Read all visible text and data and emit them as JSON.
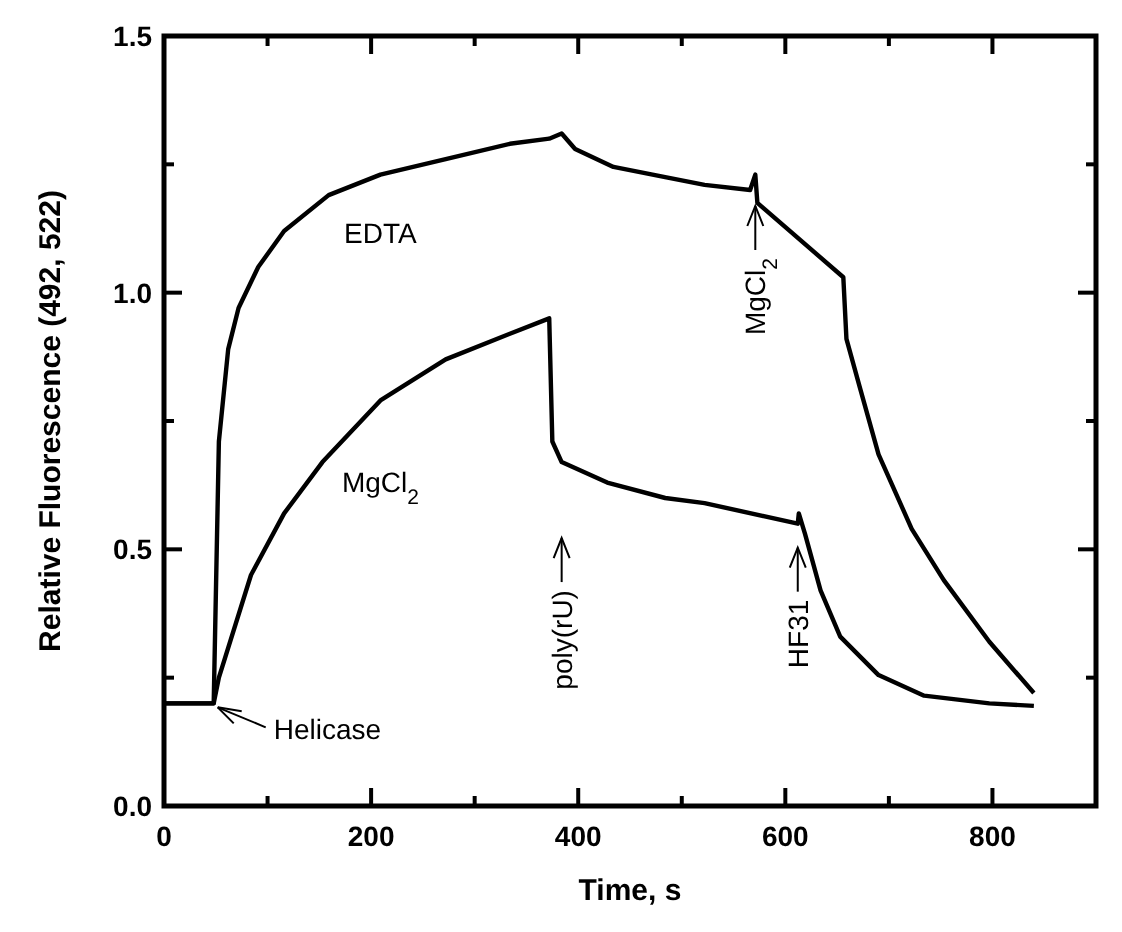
{
  "chart_data": {
    "type": "line",
    "xlabel": "Time, s",
    "ylabel": "Relative Fluorescence (492, 522)",
    "xlim": [
      0,
      900
    ],
    "ylim": [
      0,
      1.5
    ],
    "xticks": [
      0,
      {
        "value": 100,
        "label": null
      },
      200,
      {
        "value": 300,
        "label": null
      },
      400,
      {
        "value": 500,
        "label": null
      },
      600,
      {
        "value": 700,
        "label": null
      },
      800
    ],
    "yticks": [
      {
        "value": 0,
        "label": "0.0"
      },
      {
        "value": 0.25,
        "label": null
      },
      {
        "value": 0.5,
        "label": "0.5"
      },
      {
        "value": 0.75,
        "label": null
      },
      {
        "value": 1,
        "label": "1.0"
      },
      {
        "value": 1.25,
        "label": null
      },
      {
        "value": 1.5,
        "label": "1.5"
      }
    ],
    "grid": false,
    "marker": "none",
    "line_style": "solid",
    "series": [
      {
        "name": "EDTA",
        "color": "#000000",
        "x": [
          0,
          48,
          53,
          62,
          72,
          91,
          116,
          159,
          209,
          272,
          334,
          372,
          384,
          397,
          434,
          484,
          522,
          566,
          571,
          573,
          656,
          659,
          672,
          690,
          722,
          753,
          797,
          840
        ],
        "values": [
          0.2,
          0.2,
          0.71,
          0.89,
          0.97,
          1.05,
          1.12,
          1.19,
          1.23,
          1.26,
          1.29,
          1.3,
          1.31,
          1.28,
          1.245,
          1.225,
          1.21,
          1.2,
          1.23,
          1.175,
          1.03,
          0.91,
          0.815,
          0.685,
          0.54,
          0.44,
          0.32,
          0.22
        ]
      },
      {
        "name": "MgCl$_{2}$",
        "color": "#000000",
        "x": [
          0,
          48,
          53,
          84,
          116,
          153,
          209,
          272,
          334,
          372,
          375,
          384,
          428,
          484,
          522,
          612,
          613,
          619,
          634,
          653,
          690,
          734,
          797,
          840
        ],
        "values": [
          0.2,
          0.2,
          0.25,
          0.45,
          0.57,
          0.67,
          0.79,
          0.87,
          0.92,
          0.95,
          0.71,
          0.67,
          0.63,
          0.6,
          0.59,
          0.55,
          0.57,
          0.53,
          0.42,
          0.33,
          0.255,
          0.215,
          0.2,
          0.195
        ]
      }
    ],
    "annotations": [
      {
        "text": "Helicase",
        "x": 48,
        "y": 0.2
      },
      "poly(rU)",
      {
        "text": "MgCl$_{2}$",
        "x": 571,
        "y": 1.2
      },
      {
        "text": "HF31",
        "x": 612,
        "y": 0.55
      }
    ]
  }
}
